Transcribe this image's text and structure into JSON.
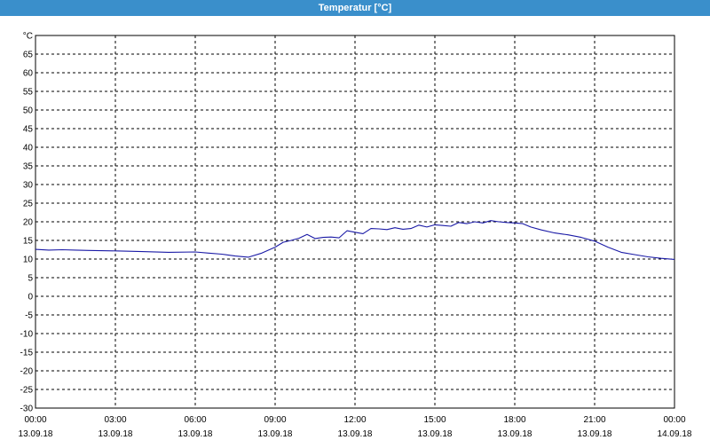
{
  "window": {
    "title": "Temperatur [°C]"
  },
  "colors": {
    "titlebar": "#3a8fcb",
    "series": "#1a1aa6",
    "grid": "#000000"
  },
  "chart_data": {
    "type": "line",
    "title": "Temperatur [°C]",
    "ylabel": "°C",
    "xlabel": "",
    "ylim": [
      -30,
      70
    ],
    "xlim_hours": [
      0,
      24
    ],
    "grid": true,
    "grid_style": "dashed",
    "y_ticks": [
      "°C",
      "65",
      "60",
      "55",
      "50",
      "45",
      "40",
      "35",
      "30",
      "25",
      "20",
      "15",
      "10",
      "5",
      "0",
      "-5",
      "-10",
      "-15",
      "-20",
      "-25",
      "-30"
    ],
    "x_ticks": [
      {
        "time": "00:00",
        "date": "13.09.18"
      },
      {
        "time": "03:00",
        "date": "13.09.18"
      },
      {
        "time": "06:00",
        "date": "13.09.18"
      },
      {
        "time": "09:00",
        "date": "13.09.18"
      },
      {
        "time": "12:00",
        "date": "13.09.18"
      },
      {
        "time": "15:00",
        "date": "13.09.18"
      },
      {
        "time": "18:00",
        "date": "13.09.18"
      },
      {
        "time": "21:00",
        "date": "13.09.18"
      },
      {
        "time": "00:00",
        "date": "14.09.18"
      }
    ],
    "series": [
      {
        "x": [
          0,
          0.5,
          1,
          1.5,
          2,
          3,
          4,
          5,
          6,
          6.5,
          7,
          7.5,
          8,
          8.5,
          9,
          9.3,
          9.6,
          9.9,
          10.2,
          10.5,
          10.8,
          11.1,
          11.4,
          11.7,
          12,
          12.3,
          12.6,
          12.9,
          13.2,
          13.5,
          13.8,
          14.1,
          14.4,
          14.7,
          15,
          15.3,
          15.6,
          15.9,
          16.2,
          16.5,
          16.8,
          17.1,
          17.4,
          17.7,
          18,
          18.3,
          18.6,
          19,
          19.5,
          20,
          20.5,
          21,
          21.5,
          22,
          22.5,
          23,
          23.5,
          24
        ],
        "y": [
          12.6,
          12.4,
          12.5,
          12.4,
          12.3,
          12.2,
          12.0,
          11.8,
          11.9,
          11.6,
          11.3,
          10.8,
          10.5,
          11.6,
          13.2,
          14.5,
          15.0,
          15.6,
          16.6,
          15.5,
          15.8,
          15.9,
          15.7,
          17.6,
          17.2,
          16.8,
          18.2,
          18.1,
          17.9,
          18.4,
          18.0,
          18.2,
          19.1,
          18.6,
          19.2,
          19.0,
          18.8,
          19.8,
          19.5,
          20.0,
          19.7,
          20.3,
          20.0,
          19.8,
          19.7,
          19.5,
          18.6,
          17.8,
          17.0,
          16.5,
          15.8,
          14.8,
          13.2,
          11.8,
          11.2,
          10.6,
          10.2,
          9.9
        ]
      }
    ]
  }
}
